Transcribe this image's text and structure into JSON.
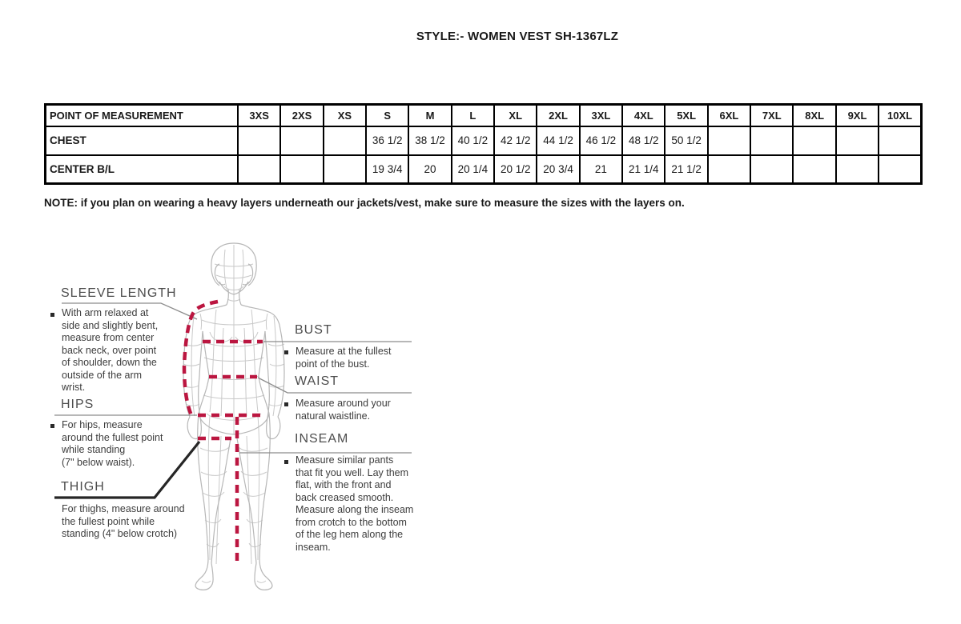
{
  "title": "STYLE:- WOMEN VEST SH-1367LZ",
  "note": "NOTE: if you plan on wearing a heavy layers underneath our jackets/vest, make sure to measure the sizes with the layers on.",
  "table": {
    "header": [
      "POINT OF MEASUREMENT",
      "3XS",
      "2XS",
      "XS",
      "S",
      "M",
      "L",
      "XL",
      "2XL",
      "3XL",
      "4XL",
      "5XL",
      "6XL",
      "7XL",
      "8XL",
      "9XL",
      "10XL"
    ],
    "rows": [
      {
        "label": "CHEST",
        "values": [
          "",
          "",
          "",
          "36 1/2",
          "38 1/2",
          "40 1/2",
          "42 1/2",
          "44 1/2",
          "46 1/2",
          "48 1/2",
          "50 1/2",
          "",
          "",
          "",
          "",
          ""
        ]
      },
      {
        "label": "CENTER B/L",
        "values": [
          "",
          "",
          "",
          "19 3/4",
          "20",
          "20 1/4",
          "20 1/2",
          "20 3/4",
          "21",
          "21 1/4",
          "21 1/2",
          "",
          "",
          "",
          "",
          ""
        ]
      }
    ]
  },
  "guide": {
    "sleeve_length": {
      "label": "SLEEVE LENGTH",
      "desc": [
        "With arm relaxed at",
        "side and slightly bent,",
        "measure from center",
        "back neck, over point",
        "of shoulder, down the",
        "outside of the arm",
        "wrist."
      ]
    },
    "hips": {
      "label": "HIPS",
      "desc": [
        "For hips, measure",
        "around the fullest point",
        "while standing",
        "(7\" below waist)."
      ]
    },
    "thigh": {
      "label": "THIGH",
      "desc": [
        "For thighs, measure around",
        "the fullest point while",
        "standing (4\" below crotch)"
      ]
    },
    "bust": {
      "label": "BUST",
      "desc": [
        "Measure at the fullest",
        "point of the bust."
      ]
    },
    "waist": {
      "label": "WAIST",
      "desc": [
        "Measure around your",
        "natural waistline."
      ]
    },
    "inseam": {
      "label": "INSEAM",
      "desc": [
        "Measure similar pants",
        "that fit you well. Lay them",
        "flat, with the front and",
        "back creased smooth.",
        "Measure along the inseam",
        "from crotch to the bottom",
        "of the leg hem along the",
        "inseam."
      ]
    }
  },
  "colors": {
    "measure_line": "#bb1640",
    "figure_line": "#b7b7b7",
    "connector": "#8c8c8c",
    "thigh_connector": "#262626",
    "text_dark": "#191919",
    "label_gray": "#4d4d4d"
  }
}
